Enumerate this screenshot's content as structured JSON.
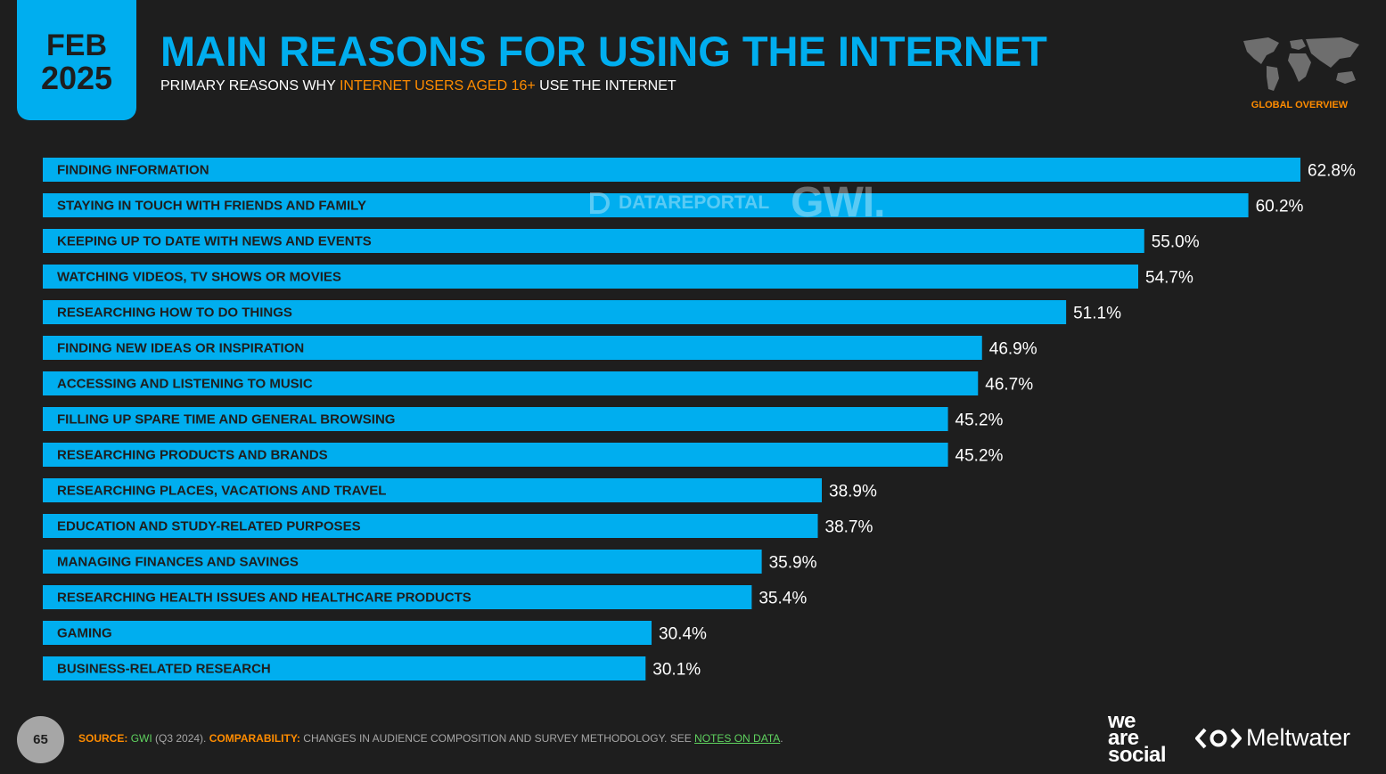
{
  "header": {
    "date_month": "FEB",
    "date_year": "2025",
    "title": "MAIN REASONS FOR USING THE INTERNET",
    "subtitle_pre": "PRIMARY REASONS WHY ",
    "subtitle_highlight": "INTERNET USERS AGED 16+",
    "subtitle_post": " USE THE INTERNET",
    "region_label": "GLOBAL OVERVIEW"
  },
  "watermark": {
    "datareportal": "DATAREPORTAL",
    "gwi": "GWI."
  },
  "chart_data": {
    "type": "bar",
    "orientation": "horizontal",
    "categories": [
      "FINDING INFORMATION",
      "STAYING IN TOUCH WITH FRIENDS AND FAMILY",
      "KEEPING UP TO DATE WITH NEWS AND EVENTS",
      "WATCHING VIDEOS, TV SHOWS OR MOVIES",
      "RESEARCHING HOW TO DO THINGS",
      "FINDING NEW IDEAS OR INSPIRATION",
      "ACCESSING AND LISTENING TO MUSIC",
      "FILLING UP SPARE TIME AND GENERAL BROWSING",
      "RESEARCHING PRODUCTS AND BRANDS",
      "RESEARCHING PLACES, VACATIONS AND TRAVEL",
      "EDUCATION AND STUDY-RELATED PURPOSES",
      "MANAGING FINANCES AND SAVINGS",
      "RESEARCHING HEALTH ISSUES AND HEALTHCARE PRODUCTS",
      "GAMING",
      "BUSINESS-RELATED RESEARCH"
    ],
    "values": [
      62.8,
      60.2,
      55.0,
      54.7,
      51.1,
      46.9,
      46.7,
      45.2,
      45.2,
      38.9,
      38.7,
      35.9,
      35.4,
      30.4,
      30.1
    ],
    "value_labels": [
      "62.8%",
      "60.2%",
      "55.0%",
      "54.7%",
      "51.1%",
      "46.9%",
      "46.7%",
      "45.2%",
      "45.2%",
      "38.9%",
      "38.7%",
      "35.9%",
      "35.4%",
      "30.4%",
      "30.1%"
    ],
    "unit": "%",
    "bar_color": "#00aeef",
    "grid": false,
    "legend": "none"
  },
  "footer": {
    "page_number": "65",
    "source_key": "SOURCE:",
    "source_org": "GWI",
    "source_period": " (Q3 2024). ",
    "comparability_key": "COMPARABILITY:",
    "comparability_text": " CHANGES IN AUDIENCE COMPOSITION AND SURVEY METHODOLOGY. SEE ",
    "notes_link": "NOTES ON DATA",
    "end": ".",
    "brand_was_1": "we",
    "brand_was_2": "are",
    "brand_was_3": "social",
    "brand_meltwater": "Meltwater"
  },
  "colors": {
    "background": "#1e1e1e",
    "accent_blue": "#00aeef",
    "accent_orange": "#ff8c00",
    "link_green": "#5fd35f"
  }
}
